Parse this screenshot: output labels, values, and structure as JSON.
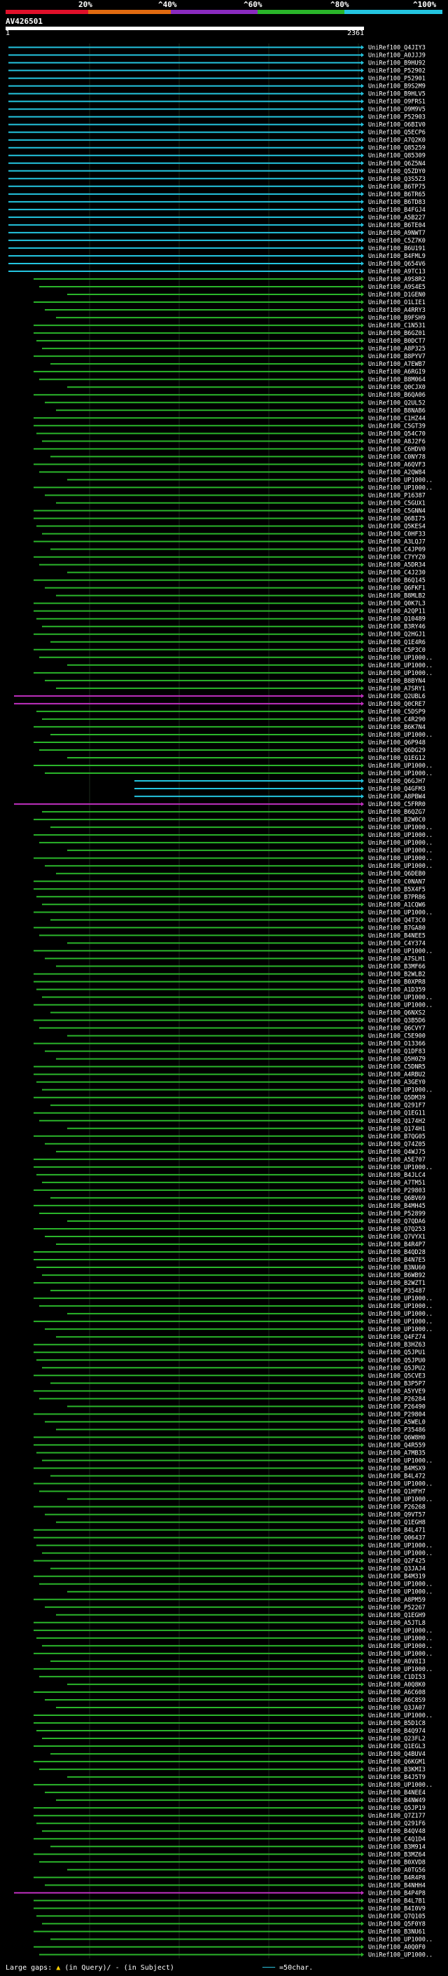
{
  "header": {
    "query_id": "AV426501",
    "ruler_start": "1",
    "ruler_end": "2361",
    "scale_labels": [
      "20%",
      "^40%",
      "^60%",
      "^80%",
      "^100%"
    ],
    "scale_colors": [
      "#e0102a",
      "#e06a10",
      "#8a2bbf",
      "#2ab52a",
      "#24c5e0"
    ]
  },
  "hits": [
    "UniRef100_Q4JIY3",
    "UniRef100_A0JJJ9",
    "UniRef100_B9HU92",
    "UniRef100_P52902",
    "UniRef100_P52901",
    "UniRef100_B9S2M9",
    "UniRef100_B9HLV5",
    "UniRef100_O9FRS1",
    "UniRef100_O9M9V5",
    "UniRef100_P52903",
    "UniRef100_O6BIV0",
    "UniRef100_Q5ECP6",
    "UniRef100_A7Q2K0",
    "UniRef100_Q85259",
    "UniRef100_Q85309",
    "UniRef100_Q6Z5N4",
    "UniRef100_Q5ZDY0",
    "UniRef100_Q3S5Z3",
    "UniRef100_B6TP75",
    "UniRef100_B6TR65",
    "UniRef100_B6TD83",
    "UniRef100_B4FGJ4",
    "UniRef100_A5B227",
    "UniRef100_B6TE04",
    "UniRef100_A9NWT7",
    "UniRef100_C5Z7K0",
    "UniRef100_B6U191",
    "UniRef100_B4FML9",
    "UniRef100_Q654V6",
    "UniRef100_A9TC13",
    "UniRef100_A9S8R2",
    "UniRef100_A9S4E5",
    "UniRef100_D1GEN0",
    "UniRef100_O1LIE1",
    "UniRef100_A4RRY3",
    "UniRef100_B9FSH9",
    "UniRef100_C1N531",
    "UniRef100_B6GZ01",
    "UniRef100_B0DCT7",
    "UniRef100_A8P325",
    "UniRef100_B8PYV7",
    "UniRef100_A7EWB7",
    "UniRef100_A6RGI9",
    "UniRef100_B8M064",
    "UniRef100_Q0CJX0",
    "UniRef100_B6QA06",
    "UniRef100_Q2UL52",
    "UniRef100_B8NAB6",
    "UniRef100_C1HZ44",
    "UniRef100_C5GT39",
    "UniRef100_Q54C70",
    "UniRef100_A8J2F6",
    "UniRef100_C6HDV0",
    "UniRef100_C0NY78",
    "UniRef100_A6QVF3",
    "UniRef100_A2QW84",
    "UniRef100_UP1000..",
    "UniRef100_UP1000..",
    "UniRef100_P16387",
    "UniRef100_C5GUX1",
    "UniRef100_C5GNN4",
    "UniRef100_Q6BI75",
    "UniRef100_Q5KES4",
    "UniRef100_C0HF33",
    "UniRef100_A3LQJ7",
    "UniRef100_C4JP09",
    "UniRef100_C7YYZ0",
    "UniRef100_A5DR34",
    "UniRef100_C4J230",
    "UniRef100_B6Q145",
    "UniRef100_Q6FKF1",
    "UniRef100_B8MLB2",
    "UniRef100_Q0K7L3",
    "UniRef100_A2QP11",
    "UniRef100_Q10489",
    "UniRef100_B3RY46",
    "UniRef100_Q2HGJ1",
    "UniRef100_Q1E4R6",
    "UniRef100_C5P3C0",
    "UniRef100_UP1000..",
    "UniRef100_UP1000..",
    "UniRef100_UP1000..",
    "UniRef100_B8BYN4",
    "UniRef100_A7SRY1",
    "UniRef100_Q2UBL6",
    "UniRef100_Q0CRE7",
    "UniRef100_C5DSP9",
    "UniRef100_C4R290",
    "UniRef100_B6K7N4",
    "UniRef100_UP1000..",
    "UniRef100_Q6P948",
    "UniRef100_Q6DG29",
    "UniRef100_Q1EG12",
    "UniRef100_UP1000..",
    "UniRef100_UP1000..",
    "UniRef100_Q6GJH7",
    "UniRef100_Q4GFM3",
    "UniRef100_A8PBW4",
    "UniRef100_C5FRR0",
    "UniRef100_B6QZG7",
    "UniRef100_B2W0C0",
    "UniRef100_UP1000..",
    "UniRef100_UP1000..",
    "UniRef100_UP1000..",
    "UniRef100_UP1000..",
    "UniRef100_UP1000..",
    "UniRef100_UP1000..",
    "UniRef100_Q6DEB0",
    "UniRef100_C0NAN7",
    "UniRef100_B5X4F5",
    "UniRef100_B7PR86",
    "UniRef100_A1CQW6",
    "UniRef100_UP1000..",
    "UniRef100_Q4T3C0",
    "UniRef100_B7GA80",
    "UniRef100_B4NEE5",
    "UniRef100_C4Y374",
    "UniRef100_UP1000..",
    "UniRef100_A7SLH1",
    "UniRef100_B3MF66",
    "UniRef100_B2WLB2",
    "UniRef100_B0XPR8",
    "UniRef100_A1D359",
    "UniRef100_UP1000..",
    "UniRef100_UP1000..",
    "UniRef100_Q6NXS2",
    "UniRef100_Q3B5D6",
    "UniRef100_Q6CVY7",
    "UniRef100_C5E900",
    "UniRef100_O13366",
    "UniRef100_Q1DF83",
    "UniRef100_Q5H0Z9",
    "UniRef100_C5DNR5",
    "UniRef100_A4RBU2",
    "UniRef100_A3GEY0",
    "UniRef100_UP1000..",
    "UniRef100_Q5DM39",
    "UniRef100_Q291F7",
    "UniRef100_Q1EG11",
    "UniRef100_Q174H2",
    "UniRef100_Q174H1",
    "UniRef100_B7QG05",
    "UniRef100_Q74Z05",
    "UniRef100_Q4WJ75",
    "UniRef100_A5E707",
    "UniRef100_UP1000..",
    "UniRef100_B4JLC4",
    "UniRef100_A7TM51",
    "UniRef100_P29803",
    "UniRef100_Q6BV69",
    "UniRef100_B4MH45",
    "UniRef100_P52899",
    "UniRef100_Q7QDA6",
    "UniRef100_Q7Q253",
    "UniRef100_Q7VYX1",
    "UniRef100_B4R4P7",
    "UniRef100_B4QD28",
    "UniRef100_B4N7E5",
    "UniRef100_B3NU60",
    "UniRef100_B6WB92",
    "UniRef100_B2WZT1",
    "UniRef100_P35487",
    "UniRef100_UP1000..",
    "UniRef100_UP1000..",
    "UniRef100_UP1000..",
    "UniRef100_UP1000..",
    "UniRef100_UP1000..",
    "UniRef100_Q4FZ74",
    "UniRef100_B3HZ63",
    "UniRef100_Q5JPU1",
    "UniRef100_Q5JPU0",
    "UniRef100_Q5JPU2",
    "UniRef100_Q5CVE3",
    "UniRef100_B3P5P7",
    "UniRef100_A5YVE9",
    "UniRef100_P26284",
    "UniRef100_P26490",
    "UniRef100_P29804",
    "UniRef100_A5WEL0",
    "UniRef100_P35486",
    "UniRef100_Q6W8H0",
    "UniRef100_Q4R559",
    "UniRef100_A7MB35",
    "UniRef100_UP1000..",
    "UniRef100_B4MSX9",
    "UniRef100_B4L472",
    "UniRef100_UP1000..",
    "UniRef100_Q1HFH7",
    "UniRef100_UP1000..",
    "UniRef100_P26268",
    "UniRef100_Q9VT57",
    "UniRef100_Q1EGH8",
    "UniRef100_B4L471",
    "UniRef100_Q06437",
    "UniRef100_UP1000..",
    "UniRef100_UP1000..",
    "UniRef100_Q2F425",
    "UniRef100_Q3JAJ4",
    "UniRef100_B4M319",
    "UniRef100_UP1000..",
    "UniRef100_UP1000..",
    "UniRef100_A8PM59",
    "UniRef100_P52267",
    "UniRef100_Q1EGH9",
    "UniRef100_A5JTL8",
    "UniRef100_UP1000..",
    "UniRef100_UP1000..",
    "UniRef100_UP1000..",
    "UniRef100_UP1000..",
    "UniRef100_A0V8I3",
    "UniRef100_UP1000..",
    "UniRef100_C1DI53",
    "UniRef100_A0Q8K0",
    "UniRef100_A6C608",
    "UniRef100_A6C8S9",
    "UniRef100_Q3JA07",
    "UniRef100_UP1000..",
    "UniRef100_B5D1C8",
    "UniRef100_B4Q974",
    "UniRef100_Q23FL2",
    "UniRef100_Q1EGL3",
    "UniRef100_Q4BUV4",
    "UniRef100_Q6KGM1",
    "UniRef100_B3KMI3",
    "UniRef100_B4J5T9",
    "UniRef100_UP1000..",
    "UniRef100_B4NEE4",
    "UniRef100_B4NW49",
    "UniRef100_Q5JP19",
    "UniRef100_Q7Z177",
    "UniRef100_Q291F6",
    "UniRef100_B4QV48",
    "UniRef100_C4Q1D4",
    "UniRef100_B3M914",
    "UniRef100_B3MZ64",
    "UniRef100_B0XVD8",
    "UniRef100_A0TG56",
    "UniRef100_B4R4P8",
    "UniRef100_B4NHH4",
    "UniRef100_B4P4P8",
    "UniRef100_B4L7B1",
    "UniRef100_B4I0V9",
    "UniRef100_Q7Q105",
    "UniRef100_Q5F0Y8",
    "UniRef100_B3NU61",
    "UniRef100_UP1000..",
    "UniRef100_A0Q0F0",
    "UniRef100_UP1000.."
  ],
  "footer": {
    "large_gaps_label": "Large gaps:",
    "in_query_label": "(in Query)/",
    "in_subject_label": "(in Subject)",
    "scale_label": "=50char."
  }
}
